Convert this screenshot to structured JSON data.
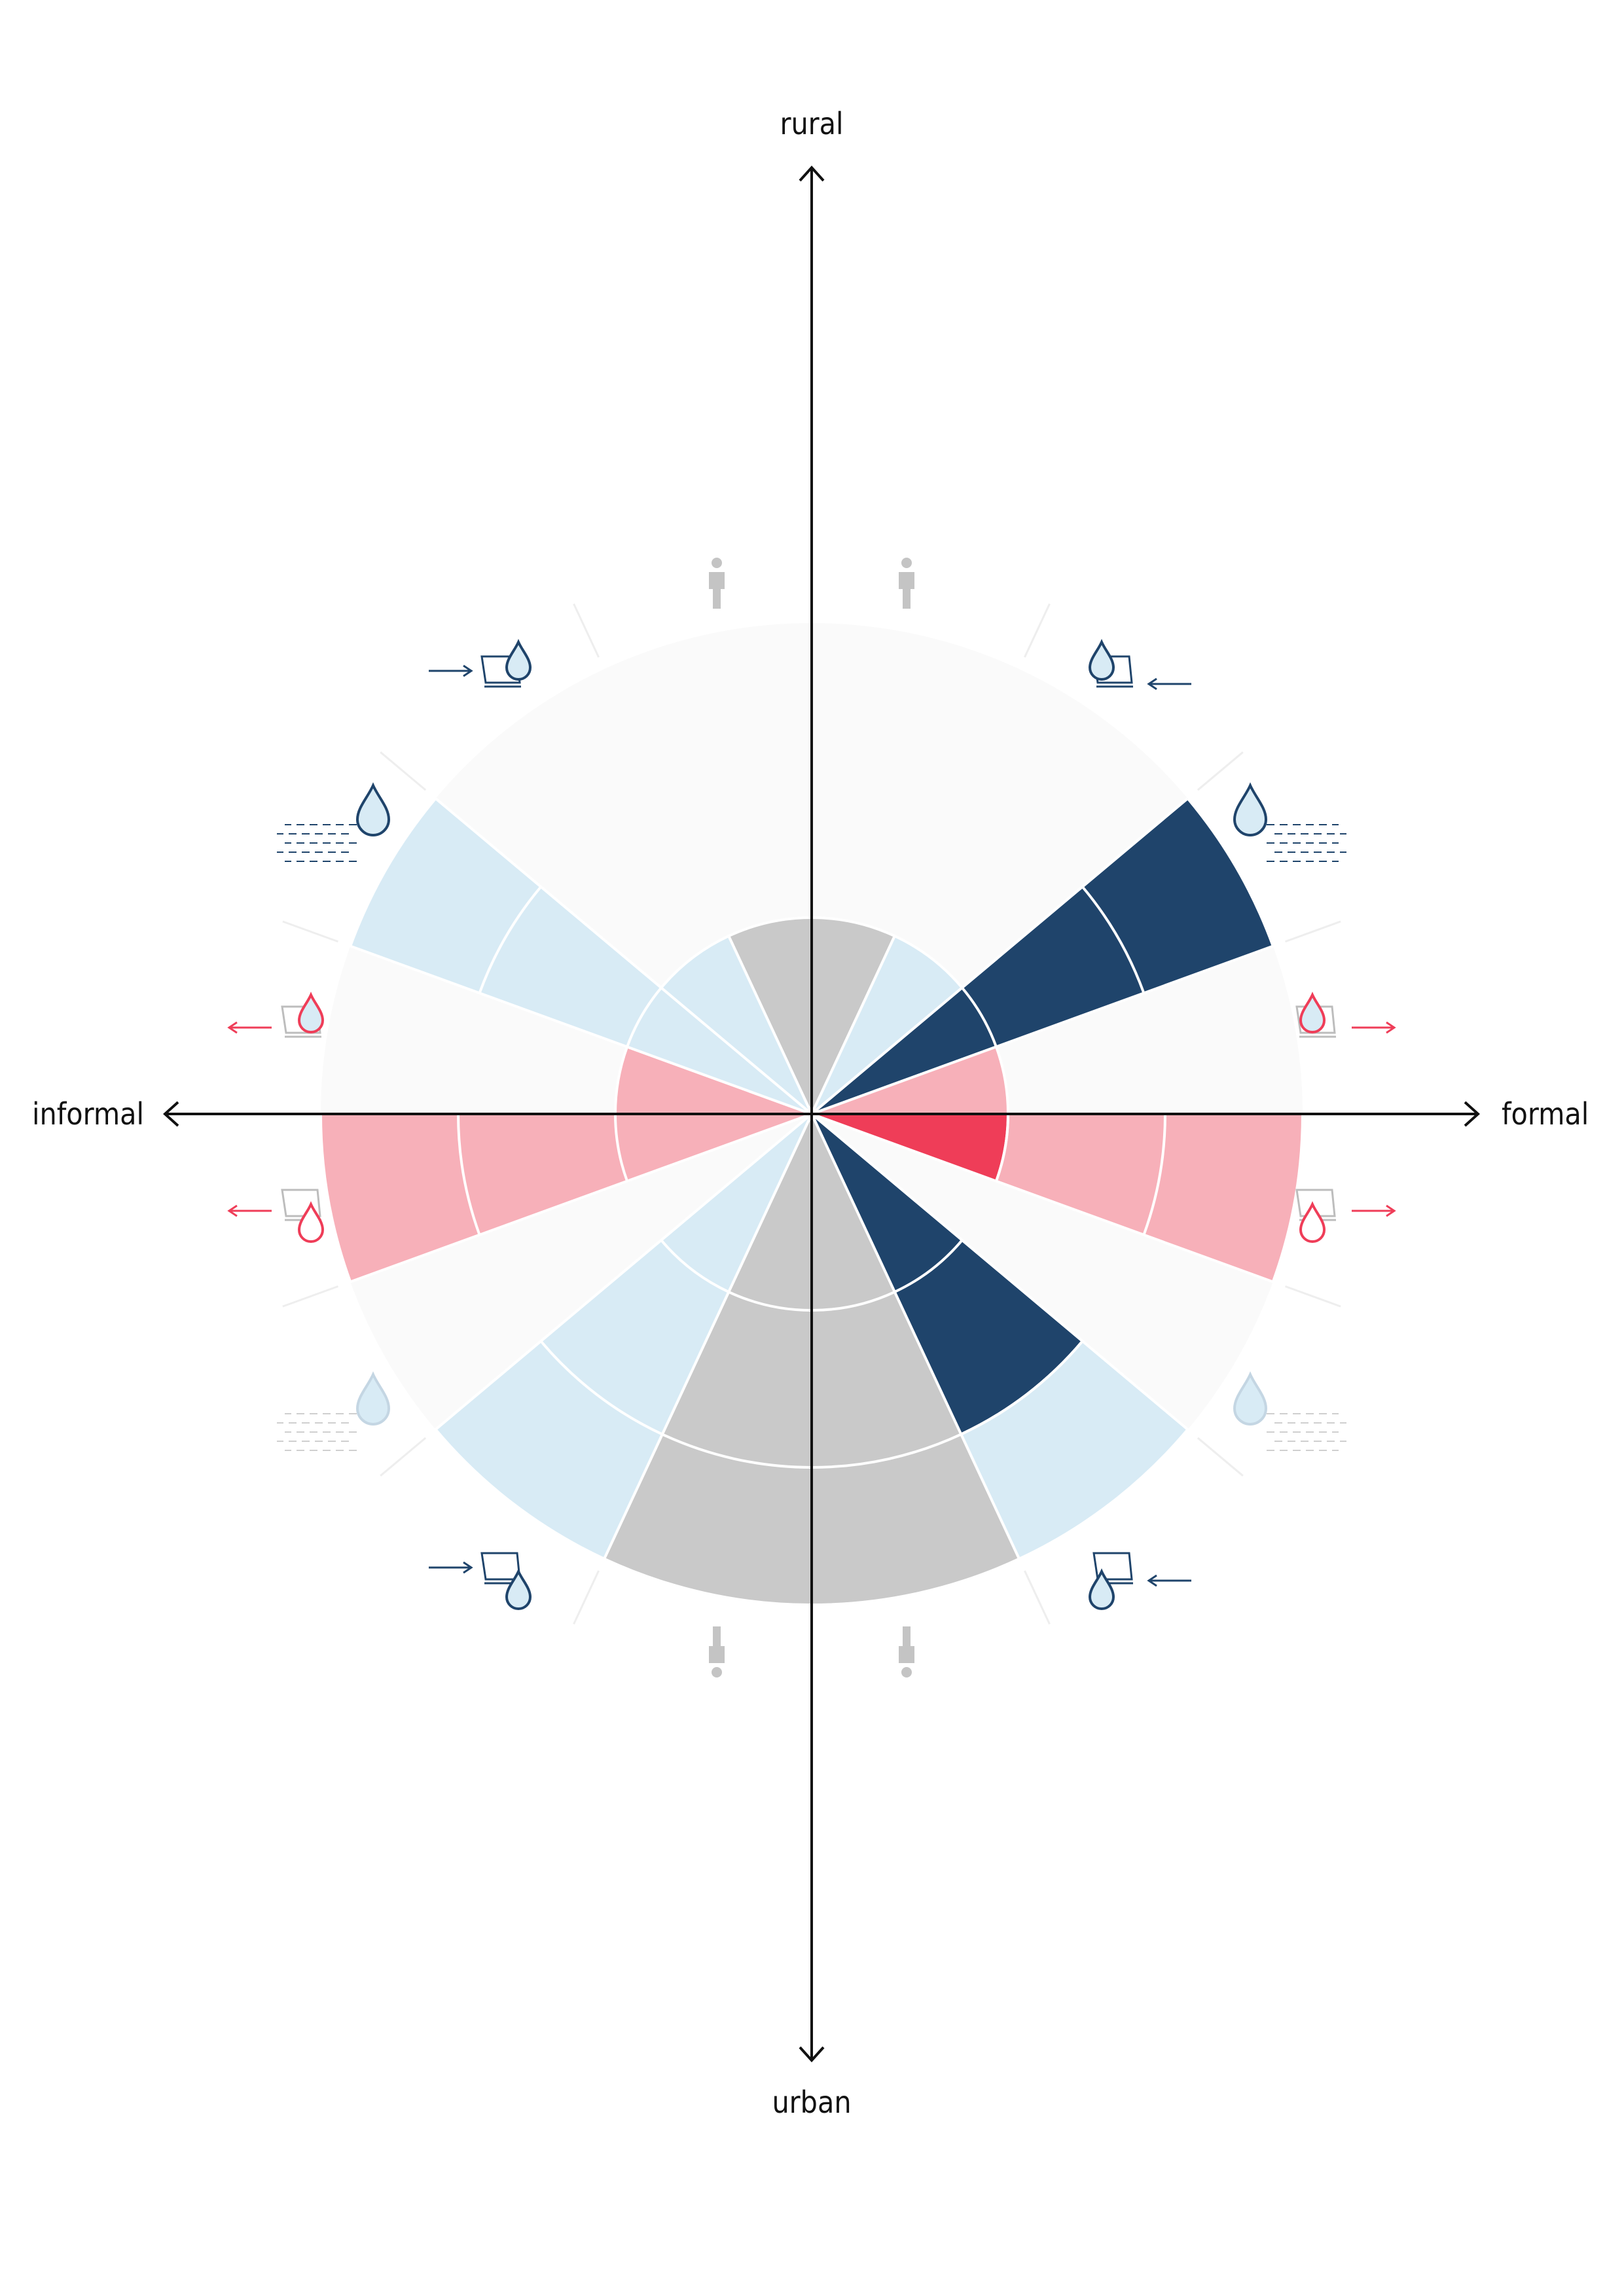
{
  "axes": {
    "top": "rural",
    "bottom": "urban",
    "left": "informal",
    "right": "formal"
  },
  "colors": {
    "background_disc": "#fafafa",
    "light_blue": "#d8ebf5",
    "dark_blue": "#1f446b",
    "pink": "#f7b0b9",
    "red": "#ef3d58",
    "gray": "#c9c9c9",
    "icon_gray": "#c4c4c4",
    "axis": "#111111"
  },
  "segments": [
    {
      "id": "rural-people",
      "fill": "gray",
      "level": 1
    },
    {
      "id": "formal-source-rural",
      "fill": "light_blue",
      "level": 1
    },
    {
      "id": "formal-water-upper",
      "fill": "dark_blue",
      "level": 3
    },
    {
      "id": "formal-waste-upper",
      "fill": "pink",
      "level": 1
    },
    {
      "id": "formal-waste-lower",
      "fill": "pink",
      "level": 3,
      "inner_fill": "red"
    },
    {
      "id": "formal-water-lower",
      "fill": "light_blue",
      "level": 0
    },
    {
      "id": "formal-source-urban",
      "fill": "dark_blue",
      "level": 2,
      "outer_fill": "light_blue",
      "outer_level": 3
    },
    {
      "id": "urban-people",
      "fill": "gray",
      "level": 3
    },
    {
      "id": "informal-source-urban",
      "fill": "light_blue",
      "level": 3
    },
    {
      "id": "informal-water-lower",
      "fill": "light_blue",
      "level": 0
    },
    {
      "id": "informal-waste-lower",
      "fill": "pink",
      "level": 3
    },
    {
      "id": "informal-waste-upper",
      "fill": "pink",
      "level": 1
    },
    {
      "id": "informal-water-upper",
      "fill": "light_blue",
      "level": 3
    },
    {
      "id": "informal-source-rural",
      "fill": "light_blue",
      "level": 1
    }
  ],
  "icons": [
    {
      "id": "person-rural-left",
      "type": "person-icon",
      "color": "icon_gray"
    },
    {
      "id": "person-rural-right",
      "type": "person-icon",
      "color": "icon_gray"
    },
    {
      "id": "tap-right-upper",
      "type": "water-collection-icon",
      "color": "dark_blue",
      "arrow": "in"
    },
    {
      "id": "drop-lake-right",
      "type": "water-source-icon",
      "color": "dark_blue"
    },
    {
      "id": "waste-out-right-upper",
      "type": "wastewater-icon",
      "color": "red",
      "arrow": "out"
    },
    {
      "id": "waste-out-right-lower",
      "type": "wastewater-icon",
      "color": "red",
      "arrow": "out"
    },
    {
      "id": "drop-lake-right-lower",
      "type": "water-source-icon",
      "color": "light_blue"
    },
    {
      "id": "tap-right-lower",
      "type": "water-collection-icon",
      "color": "dark_blue",
      "arrow": "in"
    },
    {
      "id": "person-urban-right",
      "type": "person-icon",
      "color": "icon_gray"
    },
    {
      "id": "person-urban-left",
      "type": "person-icon",
      "color": "icon_gray"
    },
    {
      "id": "tap-left-lower",
      "type": "water-collection-icon",
      "color": "dark_blue",
      "arrow": "in"
    },
    {
      "id": "drop-lake-left-lower",
      "type": "water-source-icon",
      "color": "light_blue"
    },
    {
      "id": "waste-out-left-lower",
      "type": "wastewater-icon",
      "color": "red",
      "arrow": "out"
    },
    {
      "id": "waste-out-left-upper",
      "type": "wastewater-icon",
      "color": "red",
      "arrow": "out"
    },
    {
      "id": "drop-lake-left",
      "type": "water-source-icon",
      "color": "dark_blue"
    },
    {
      "id": "tap-left-upper",
      "type": "water-collection-icon",
      "color": "dark_blue",
      "arrow": "in"
    }
  ]
}
